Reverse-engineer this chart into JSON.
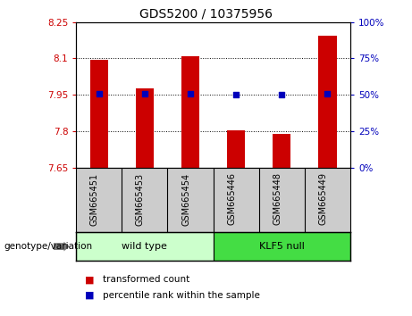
{
  "title": "GDS5200 / 10375956",
  "categories": [
    "GSM665451",
    "GSM665453",
    "GSM665454",
    "GSM665446",
    "GSM665448",
    "GSM665449"
  ],
  "bar_values": [
    8.095,
    7.975,
    8.11,
    7.805,
    7.79,
    8.195
  ],
  "bar_bottom": 7.65,
  "percentile_values": [
    7.956,
    7.956,
    7.956,
    7.95,
    7.95,
    7.956
  ],
  "ylim": [
    7.65,
    8.25
  ],
  "yticks_left": [
    7.65,
    7.8,
    7.95,
    8.1,
    8.25
  ],
  "yticks_right": [
    0,
    25,
    50,
    75,
    100
  ],
  "bar_color": "#cc0000",
  "percentile_color": "#0000bb",
  "wild_type_indices": [
    0,
    1,
    2
  ],
  "klf5_null_indices": [
    3,
    4,
    5
  ],
  "wild_type_label": "wild type",
  "klf5_null_label": "KLF5 null",
  "wild_type_color": "#ccffcc",
  "klf5_null_color": "#44dd44",
  "legend_bar_label": "transformed count",
  "legend_dot_label": "percentile rank within the sample",
  "genotype_label": "genotype/variation",
  "left_tick_color": "#cc0000",
  "right_tick_color": "#0000bb",
  "tick_label_area_color": "#cccccc",
  "bar_width": 0.4
}
